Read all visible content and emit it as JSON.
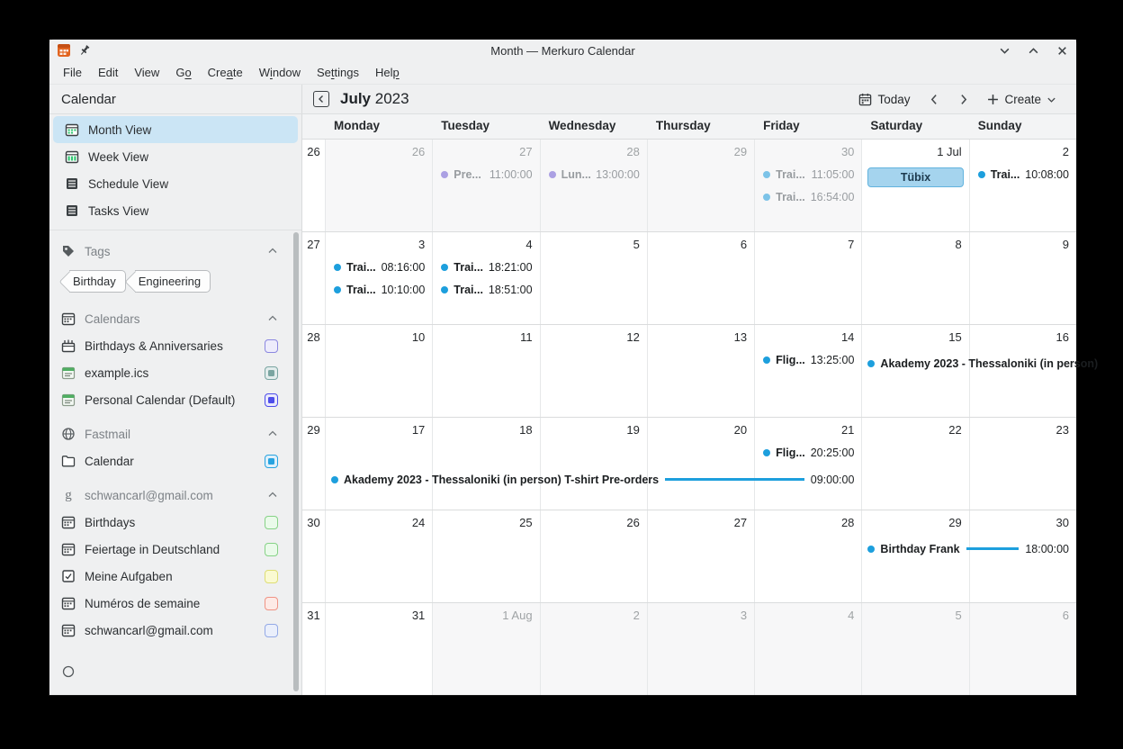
{
  "window": {
    "title": "Month — Merkuro Calendar"
  },
  "menu": {
    "items": [
      {
        "label": "File",
        "underline": ""
      },
      {
        "label": "Edit",
        "underline": ""
      },
      {
        "label": "View",
        "underline": ""
      },
      {
        "label": "Go",
        "underline": "o"
      },
      {
        "label": "Create",
        "underline": "a"
      },
      {
        "label": "Window",
        "underline": "i"
      },
      {
        "label": "Settings",
        "underline": "t"
      },
      {
        "label": "Help",
        "underline": "p"
      }
    ]
  },
  "sidebar": {
    "title": "Calendar",
    "views": [
      {
        "label": "Month View",
        "icon": "month-view-icon",
        "selected": true
      },
      {
        "label": "Week View",
        "icon": "week-view-icon",
        "selected": false
      },
      {
        "label": "Schedule View",
        "icon": "schedule-view-icon",
        "selected": false
      },
      {
        "label": "Tasks View",
        "icon": "tasks-view-icon",
        "selected": false
      }
    ],
    "sections": [
      {
        "id": "tags",
        "label": "Tags",
        "icon": "tag-icon",
        "tags": [
          "Birthday",
          "Engineering"
        ],
        "items": []
      },
      {
        "id": "calendars",
        "label": "Calendars",
        "icon": "calendar-icon",
        "items": [
          {
            "label": "Birthdays & Anniversaries",
            "icon": "anniversary-icon",
            "checkbox": {
              "color": "#8b87e0",
              "tint": "#edecfb",
              "checked": false
            }
          },
          {
            "label": "example.ics",
            "icon": "green-calendar-icon",
            "checkbox": {
              "color": "#7aa5a1",
              "tint": "#e2ecec",
              "checked": true
            }
          },
          {
            "label": "Personal Calendar (Default)",
            "icon": "green-calendar-icon",
            "checkbox": {
              "color": "#4d4dea",
              "tint": "#e9e9fb",
              "checked": true
            }
          }
        ]
      },
      {
        "id": "fastmail",
        "label": "Fastmail",
        "icon": "globe-icon",
        "items": [
          {
            "label": "Calendar",
            "icon": "folder-icon",
            "checkbox": {
              "color": "#27a3e0",
              "tint": "#dff0fa",
              "checked": true
            }
          }
        ]
      },
      {
        "id": "gmail-account",
        "label": "schwancarl@gmail.com",
        "icon": "google-icon",
        "items": [
          {
            "label": "Birthdays",
            "icon": "calendar-icon",
            "checkbox": {
              "color": "#86d286",
              "tint": "#eafaea",
              "checked": false
            }
          },
          {
            "label": "Feiertage in Deutschland",
            "icon": "calendar-icon",
            "checkbox": {
              "color": "#86d286",
              "tint": "#eafaea",
              "checked": false
            }
          },
          {
            "label": "Meine Aufgaben",
            "icon": "task-icon",
            "checkbox": {
              "color": "#dede74",
              "tint": "#fafad2",
              "checked": false
            }
          },
          {
            "label": "Numéros de semaine",
            "icon": "calendar-icon",
            "checkbox": {
              "color": "#ef9384",
              "tint": "#fdeae6",
              "checked": false
            }
          },
          {
            "label": "schwancarl@gmail.com",
            "icon": "calendar-icon",
            "checkbox": {
              "color": "#93a9e6",
              "tint": "#eaeffb",
              "checked": false
            }
          }
        ]
      }
    ]
  },
  "toolbar": {
    "month": "July",
    "year": "2023",
    "today_label": "Today",
    "create_label": "Create"
  },
  "calendar": {
    "day_headers": [
      "Monday",
      "Tuesday",
      "Wednesday",
      "Thursday",
      "Friday",
      "Saturday",
      "Sunday"
    ],
    "colors": {
      "accent_blue": "#1d9fdd",
      "muted_blue_dot": "#7cc3e8",
      "muted_purple_dot": "#aba0e3",
      "allday_pill_bg": "#a5d4ee",
      "allday_pill_border": "#62b3de"
    },
    "weeks": [
      {
        "num": "26",
        "days": [
          {
            "date": "26",
            "muted": true,
            "events": []
          },
          {
            "date": "27",
            "muted": true,
            "events": [
              {
                "title": "Pre...",
                "time": "11:00:00",
                "dot": "purple"
              }
            ]
          },
          {
            "date": "28",
            "muted": true,
            "events": [
              {
                "title": "Lun...",
                "time": "13:00:00",
                "dot": "purple"
              }
            ]
          },
          {
            "date": "29",
            "muted": true,
            "events": []
          },
          {
            "date": "30",
            "muted": true,
            "events": [
              {
                "title": "Trai...",
                "time": "11:05:00",
                "dot": "blue"
              },
              {
                "title": "Trai...",
                "time": "16:54:00",
                "dot": "blue"
              }
            ]
          },
          {
            "date": "1 Jul",
            "muted": false,
            "events": [
              {
                "pill": "Tübix"
              }
            ]
          },
          {
            "date": "2",
            "muted": false,
            "events": [
              {
                "title": "Trai...",
                "time": "10:08:00",
                "dot": "blue"
              }
            ]
          }
        ],
        "spans": []
      },
      {
        "num": "27",
        "days": [
          {
            "date": "3",
            "muted": false,
            "events": [
              {
                "title": "Trai...",
                "time": "08:16:00",
                "dot": "blue"
              },
              {
                "title": "Trai...",
                "time": "10:10:00",
                "dot": "blue"
              }
            ]
          },
          {
            "date": "4",
            "muted": false,
            "events": [
              {
                "title": "Trai...",
                "time": "18:21:00",
                "dot": "blue"
              },
              {
                "title": "Trai...",
                "time": "18:51:00",
                "dot": "blue"
              }
            ]
          },
          {
            "date": "5",
            "muted": false,
            "events": []
          },
          {
            "date": "6",
            "muted": false,
            "events": []
          },
          {
            "date": "7",
            "muted": false,
            "events": []
          },
          {
            "date": "8",
            "muted": false,
            "events": []
          },
          {
            "date": "9",
            "muted": false,
            "events": []
          }
        ],
        "spans": []
      },
      {
        "num": "28",
        "days": [
          {
            "date": "10",
            "muted": false,
            "events": []
          },
          {
            "date": "11",
            "muted": false,
            "events": []
          },
          {
            "date": "12",
            "muted": false,
            "events": []
          },
          {
            "date": "13",
            "muted": false,
            "events": []
          },
          {
            "date": "14",
            "muted": false,
            "events": [
              {
                "title": "Flig...",
                "time": "13:25:00",
                "dot": "blue"
              }
            ]
          },
          {
            "date": "15",
            "muted": false,
            "events": []
          },
          {
            "date": "16",
            "muted": false,
            "events": []
          }
        ],
        "spans": [
          {
            "line": 1,
            "start": 5,
            "span": 2,
            "title": "Akademy 2023 - Thessaloniki (in person)",
            "time": "",
            "rule": false,
            "clip": true
          }
        ]
      },
      {
        "num": "29",
        "days": [
          {
            "date": "17",
            "muted": false,
            "events": []
          },
          {
            "date": "18",
            "muted": false,
            "events": []
          },
          {
            "date": "19",
            "muted": false,
            "events": []
          },
          {
            "date": "20",
            "muted": false,
            "events": []
          },
          {
            "date": "21",
            "muted": false,
            "events": [
              {
                "title": "Flig...",
                "time": "20:25:00",
                "dot": "blue"
              }
            ]
          },
          {
            "date": "22",
            "muted": false,
            "events": []
          },
          {
            "date": "23",
            "muted": false,
            "events": []
          }
        ],
        "spans": [
          {
            "line": 2,
            "start": 0,
            "span": 5,
            "title": "Akademy 2023 - Thessaloniki (in person) T-shirt Pre-orders",
            "time": "09:00:00",
            "rule": true,
            "clip": false
          }
        ]
      },
      {
        "num": "30",
        "days": [
          {
            "date": "24",
            "muted": false,
            "events": []
          },
          {
            "date": "25",
            "muted": false,
            "events": []
          },
          {
            "date": "26",
            "muted": false,
            "events": []
          },
          {
            "date": "27",
            "muted": false,
            "events": []
          },
          {
            "date": "28",
            "muted": false,
            "events": []
          },
          {
            "date": "29",
            "muted": false,
            "events": []
          },
          {
            "date": "30",
            "muted": false,
            "events": []
          }
        ],
        "spans": [
          {
            "line": 1,
            "start": 5,
            "span": 2,
            "title": "Birthday Frank",
            "time": "18:00:00",
            "rule": true,
            "clip": false
          }
        ]
      },
      {
        "num": "31",
        "days": [
          {
            "date": "31",
            "muted": false,
            "events": []
          },
          {
            "date": "1 Aug",
            "muted": true,
            "events": []
          },
          {
            "date": "2",
            "muted": true,
            "events": []
          },
          {
            "date": "3",
            "muted": true,
            "events": []
          },
          {
            "date": "4",
            "muted": true,
            "events": []
          },
          {
            "date": "5",
            "muted": true,
            "events": []
          },
          {
            "date": "6",
            "muted": true,
            "events": []
          }
        ],
        "spans": []
      }
    ]
  }
}
